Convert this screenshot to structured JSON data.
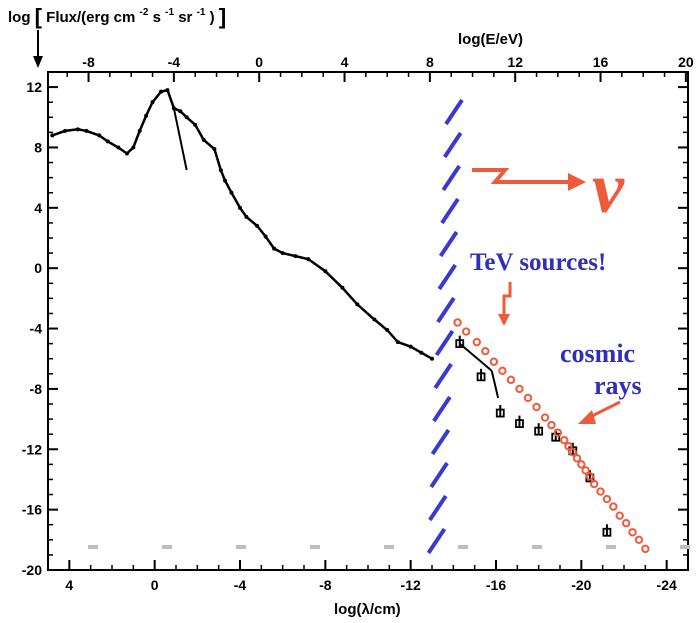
{
  "chart_data": {
    "type": "scatter",
    "title": "",
    "ylabel_prefix": "log",
    "ylabel_quantity": "Flux/(erg cm",
    "ylabel_exp1": "-2",
    "ylabel_mid1": " s",
    "ylabel_exp2": "-1",
    "ylabel_mid2": " sr",
    "ylabel_exp3": "-1",
    "ylabel_end": ")",
    "xlabel_bottom": "log(λ/cm)",
    "xlabel_top": "log(E/eV)",
    "bottom_ticks": [
      "4",
      "0",
      "-4",
      "-8",
      "-12",
      "-16",
      "-20",
      "-24"
    ],
    "top_ticks": [
      "-8",
      "-4",
      "0",
      "4",
      "8",
      "12",
      "16",
      "20"
    ],
    "y_ticks": [
      "12",
      "8",
      "4",
      "0",
      "-4",
      "-8",
      "-12",
      "-16",
      "-20"
    ],
    "xlim_log_lambda": [
      5,
      -25
    ],
    "ylim": [
      -20,
      13
    ],
    "grid": false,
    "series": [
      {
        "kind": "black-measurements",
        "x": [
          4.8,
          4.2,
          3.6,
          3.2,
          2.6,
          2.2,
          1.7,
          1.3,
          1.0,
          0.7,
          0.4,
          0.1,
          -0.3,
          -0.6,
          -0.9,
          -1.2,
          -1.5,
          -1.9,
          -2.3,
          -2.8,
          -3.1,
          -3.3,
          -3.6,
          -4.0,
          -4.3,
          -4.8,
          -5.2,
          -5.6,
          -6.0,
          -6.6,
          -7.2,
          -8.0,
          -8.8,
          -9.5,
          -10.3,
          -10.9,
          -11.4,
          -12.0,
          -12.5,
          -13.0
        ],
        "y": [
          8.8,
          9.1,
          9.2,
          9.1,
          8.8,
          8.4,
          8.0,
          7.6,
          8.0,
          9.1,
          10.1,
          11.0,
          11.7,
          11.8,
          10.6,
          10.4,
          10.0,
          9.5,
          8.5,
          7.9,
          6.5,
          5.8,
          5.0,
          4.0,
          3.4,
          2.8,
          2.1,
          1.3,
          1.0,
          0.8,
          0.6,
          -0.2,
          -1.3,
          -2.4,
          -3.4,
          -4.1,
          -4.9,
          -5.2,
          -5.6,
          -6.0
        ]
      },
      {
        "kind": "black-measurements-high-energy",
        "x": [
          -14.3,
          -15.3,
          -16.2,
          -17.1,
          -18.0,
          -18.8,
          -19.6,
          -20.4,
          -21.2
        ],
        "y": [
          -5.0,
          -7.2,
          -9.6,
          -10.3,
          -10.8,
          -11.2,
          -12.1,
          -13.9,
          -17.5
        ]
      },
      {
        "kind": "red-points",
        "x": [
          -14.2,
          -14.6,
          -15.1,
          -15.5,
          -15.9,
          -16.3,
          -16.7,
          -17.1,
          -17.5,
          -17.9,
          -18.3,
          -18.6,
          -18.9,
          -19.2,
          -19.4,
          -19.6,
          -19.8,
          -20.0,
          -20.2,
          -20.4,
          -20.6,
          -20.9,
          -21.2,
          -21.5,
          -21.8,
          -22.1,
          -22.4,
          -22.7,
          -23.0
        ],
        "y": [
          -3.6,
          -4.2,
          -4.9,
          -5.5,
          -6.2,
          -6.8,
          -7.4,
          -8.0,
          -8.6,
          -9.2,
          -9.9,
          -10.4,
          -10.9,
          -11.4,
          -11.8,
          -12.2,
          -12.6,
          -13.0,
          -13.4,
          -13.8,
          -14.3,
          -14.8,
          -15.3,
          -15.8,
          -16.4,
          -16.9,
          -17.5,
          -18.0,
          -18.6
        ]
      }
    ],
    "annotations": {
      "nu_symbol": "ν",
      "tev": "TeV sources!",
      "cosmic_line1": "cosmic",
      "cosmic_line2": "rays"
    },
    "colors": {
      "ink": "#000000",
      "hatch": "#3a3ad0",
      "red": "#f05a3c",
      "blue_text": "#2f2fb8"
    }
  }
}
